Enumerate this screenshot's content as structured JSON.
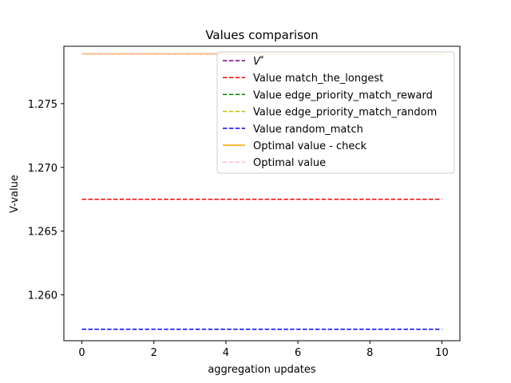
{
  "chart_data": {
    "type": "line",
    "title": "Values comparison",
    "xlabel": "aggregation updates",
    "ylabel": "V-value",
    "xlim": [
      -0.5,
      10.5
    ],
    "ylim": [
      1.2564,
      1.2795
    ],
    "xticks": [
      0,
      2,
      4,
      6,
      8,
      10
    ],
    "xtick_labels": [
      "0",
      "2",
      "4",
      "6",
      "8",
      "10"
    ],
    "yticks": [
      1.26,
      1.265,
      1.27,
      1.275
    ],
    "ytick_labels": [
      "1.260",
      "1.265",
      "1.270",
      "1.275"
    ],
    "x": [
      0,
      10
    ],
    "grid": false,
    "legend_position": "upper right",
    "series": [
      {
        "name": "V*",
        "color": "#800080",
        "style": "dashed",
        "values": [
          1.2789,
          1.2789
        ]
      },
      {
        "name": "Value match_the_longest",
        "color": "#ff0000",
        "style": "dashed",
        "values": [
          1.2675,
          1.2675
        ]
      },
      {
        "name": "Value edge_priority_match_reward",
        "color": "#008000",
        "style": "dashed",
        "values": [
          1.2789,
          1.2789
        ]
      },
      {
        "name": "Value edge_priority_match_random",
        "color": "#bfbf00",
        "style": "dashed",
        "values": [
          1.2789,
          1.2789
        ]
      },
      {
        "name": "Value random_match",
        "color": "#0000ff",
        "style": "dashed",
        "values": [
          1.2573,
          1.2573
        ]
      },
      {
        "name": "Optimal value - check",
        "color": "#ffa500",
        "style": "solid",
        "values": [
          1.2789,
          1.2789
        ]
      },
      {
        "name": "Optimal value",
        "color": "#ffc0cb",
        "style": "dashed",
        "values": [
          1.2789,
          1.2789
        ]
      }
    ]
  }
}
